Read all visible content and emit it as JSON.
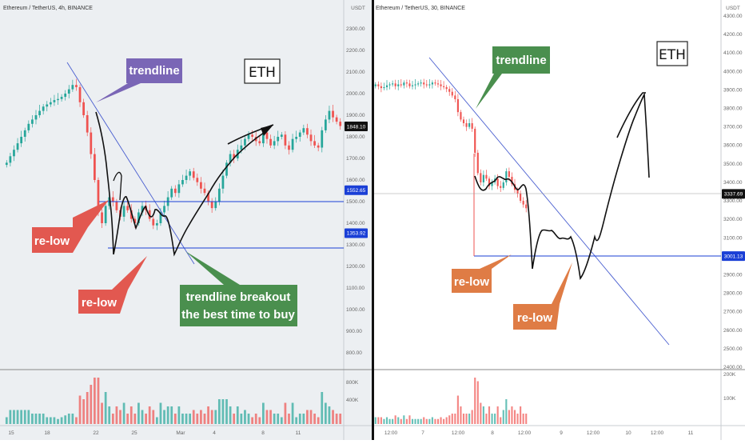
{
  "colors": {
    "up": "#26a69a",
    "down": "#ef5350",
    "trendline": "#4a5fd0",
    "level": "#1a3fd6",
    "purple": "#7a66b6",
    "red_callout": "#e25850",
    "green_callout": "#4a8f4e",
    "orange_callout": "#df7c45",
    "drawing": "#111111",
    "panel_left": "#eceff2",
    "panel_right": "#ffffff"
  },
  "chart_data": [
    {
      "type": "candlestick",
      "title": "Ethereum / TetherUS, 4h, BINANCE",
      "axis_unit": "USDT",
      "ylim": [
        600,
        2600
      ],
      "y_ticks": [
        "2300.00",
        "2200.00",
        "2100.00",
        "2000.00",
        "1900.00",
        "1800.00",
        "1700.00",
        "1600.00",
        "1500.00",
        "1400.00",
        "1300.00",
        "1200.00",
        "1100.00",
        "1000.00",
        "900.00",
        "800.00"
      ],
      "x_ticks": [
        "15",
        "18",
        "22",
        "25",
        "Mar",
        "4",
        "8",
        "11"
      ],
      "volume_ticks": [
        "800K",
        "400K"
      ],
      "price_tags": [
        {
          "label": "1848.10",
          "value": 1848.1,
          "style": "last"
        },
        {
          "label": "1552.65",
          "value": 1552.65,
          "style": "level"
        },
        {
          "label": "1353.92",
          "value": 1353.92,
          "style": "level"
        }
      ],
      "close_series": [
        1680,
        1710,
        1740,
        1770,
        1800,
        1830,
        1860,
        1880,
        1900,
        1920,
        1940,
        1950,
        1960,
        1970,
        1975,
        1985,
        2000,
        2020,
        2040,
        2030,
        1960,
        1900,
        1820,
        1720,
        1600,
        1450,
        1400,
        1480,
        1520,
        1500,
        1460,
        1430,
        1480,
        1460,
        1420,
        1400,
        1450,
        1480,
        1460,
        1420,
        1390,
        1400,
        1450,
        1480,
        1520,
        1560,
        1540,
        1580,
        1600,
        1620,
        1640,
        1610,
        1590,
        1560,
        1540,
        1500,
        1470,
        1500,
        1560,
        1620,
        1680,
        1720,
        1700,
        1740,
        1760,
        1790,
        1810,
        1800,
        1780,
        1770,
        1820,
        1790,
        1760,
        1780,
        1800,
        1810,
        1760,
        1740,
        1790,
        1800,
        1820,
        1840,
        1810,
        1780,
        1760,
        1750,
        1830,
        1880,
        1920,
        1890,
        1870,
        1850
      ],
      "callouts": {
        "trendline": "trendline",
        "relow_1": "re-low",
        "relow_2": "re-low",
        "breakout": [
          "trendline breakout",
          "the best time to buy"
        ],
        "eth": "ETH"
      }
    },
    {
      "type": "candlestick",
      "title": "Ethereum / TetherUS, 30, BINANCE",
      "axis_unit": "USDT",
      "ylim": [
        2300,
        4450
      ],
      "y_ticks": [
        "4300.00",
        "4200.00",
        "4100.00",
        "4000.00",
        "3900.00",
        "3800.00",
        "3700.00",
        "3600.00",
        "3500.00",
        "3400.00",
        "3300.00",
        "3200.00",
        "3100.00",
        "3000.00",
        "2900.00",
        "2800.00",
        "2700.00",
        "2600.00",
        "2500.00",
        "2400.00"
      ],
      "x_ticks": [
        "12:00",
        "7",
        "12:00",
        "8",
        "12:00",
        "9",
        "12:00",
        "10",
        "12:00",
        "11"
      ],
      "volume_ticks": [
        "200K",
        "100K"
      ],
      "price_tags": [
        {
          "label": "3337.69",
          "value": 3337.69,
          "style": "last"
        },
        {
          "label": "3001.13",
          "value": 3001.13,
          "style": "level"
        }
      ],
      "close_series": [
        3930,
        3920,
        3910,
        3915,
        3925,
        3930,
        3935,
        3920,
        3930,
        3925,
        3940,
        3935,
        3920,
        3925,
        3930,
        3935,
        3940,
        3930,
        3925,
        3930,
        3940,
        3935,
        3930,
        3920,
        3915,
        3905,
        3890,
        3870,
        3850,
        3780,
        3740,
        3720,
        3700,
        3720,
        3690,
        3560,
        3450,
        3400,
        3440,
        3420,
        3380,
        3400,
        3420,
        3380,
        3370,
        3400,
        3460,
        3430,
        3390,
        3360,
        3340,
        3300,
        3280,
        3260
      ],
      "callouts": {
        "trendline": "trendline",
        "relow_1": "re-low",
        "relow_2": "re-low",
        "eth": "ETH"
      }
    }
  ]
}
